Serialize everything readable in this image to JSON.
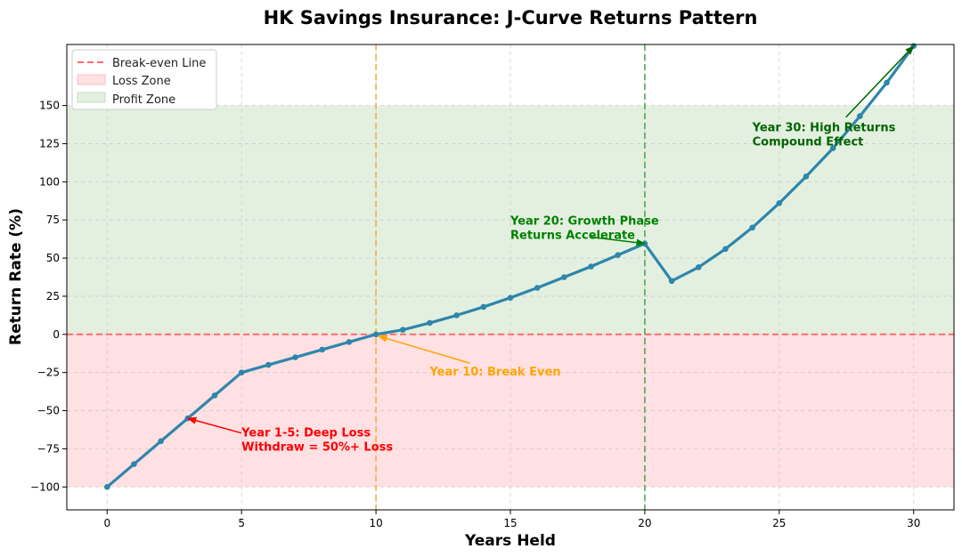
{
  "chart_data": {
    "type": "line",
    "title": "HK Savings Insurance: J-Curve Returns Pattern",
    "xlabel": "Years Held",
    "ylabel": "Return Rate (%)",
    "xlim": [
      -1.5,
      31.5
    ],
    "ylim": [
      -115,
      190
    ],
    "xticks": [
      0,
      5,
      10,
      15,
      20,
      25,
      30
    ],
    "yticks": [
      -100,
      -75,
      -50,
      -25,
      0,
      25,
      50,
      75,
      100,
      125,
      150
    ],
    "xtick_labels": [
      "0",
      "5",
      "10",
      "15",
      "20",
      "25",
      "30"
    ],
    "ytick_labels": [
      "−100",
      "−75",
      "−50",
      "−25",
      "0",
      "25",
      "50",
      "75",
      "100",
      "125",
      "150"
    ],
    "grid": true,
    "legend_position": "top-left",
    "series": [
      {
        "color": "#2e86ab",
        "x": [
          0,
          1,
          2,
          3,
          4,
          5,
          6,
          7,
          8,
          9,
          10,
          11,
          12,
          13,
          14,
          15,
          16,
          17,
          18,
          19,
          20,
          21,
          22,
          23,
          24,
          25,
          26,
          27,
          28,
          29,
          30
        ],
        "y": [
          -100,
          -85,
          -70,
          -55,
          -40,
          -25,
          -20,
          -15,
          -10,
          -5,
          0,
          3,
          7.5,
          12.5,
          18,
          24,
          30.5,
          37.5,
          44.5,
          52,
          59.5,
          35,
          44,
          56,
          70,
          86,
          103.5,
          122,
          143,
          165,
          189
        ]
      }
    ],
    "reference_lines": [
      {
        "orientation": "horizontal",
        "value": 0,
        "color": "#ff6b6b",
        "style": "dashed",
        "legend": "Break-even Line"
      },
      {
        "orientation": "vertical",
        "value": 10,
        "color": "#f5b041",
        "style": "dashed"
      },
      {
        "orientation": "vertical",
        "value": 20,
        "color": "#52a852",
        "style": "dashed"
      }
    ],
    "zones": [
      {
        "from": -100,
        "to": 0,
        "color": "#ffe0e3",
        "legend": "Loss Zone"
      },
      {
        "from": 0,
        "to": 150,
        "color": "#e3f0e0",
        "legend": "Profit Zone"
      }
    ],
    "legend": [
      "Break-even Line",
      "Loss Zone",
      "Profit Zone"
    ],
    "annotations": [
      {
        "lines": [
          "Year 1-5: Deep Loss",
          "Withdraw = 50%+ Loss"
        ],
        "point": [
          3,
          -55
        ],
        "text_at": [
          5,
          -67
        ],
        "color": "#ff0000"
      },
      {
        "lines": [
          "Year 10: Break Even"
        ],
        "point": [
          10,
          0
        ],
        "text_at": [
          12,
          -27
        ],
        "color": "#ffa500"
      },
      {
        "lines": [
          "Year 20: Growth Phase",
          "Returns Accelerate"
        ],
        "point": [
          20,
          59.5
        ],
        "text_at": [
          15,
          72
        ],
        "color": "#008000"
      },
      {
        "lines": [
          "Year 30: High Returns",
          "Compound Effect"
        ],
        "point": [
          30,
          189
        ],
        "text_at": [
          24,
          133
        ],
        "color": "#006400"
      }
    ]
  }
}
